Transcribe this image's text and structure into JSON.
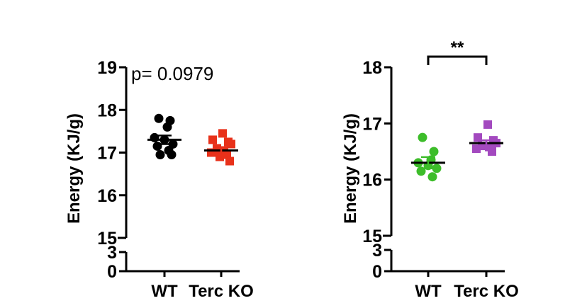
{
  "chart_data": [
    {
      "type": "scatter",
      "ylabel": "Energy (KJ/g)",
      "categories": [
        "WT",
        "Terc KO"
      ],
      "annotation": "p= 0.0979",
      "y_ticks_upper": [
        "15",
        "16",
        "17",
        "18",
        "19"
      ],
      "y_ticks_lower": [
        "0",
        "3"
      ],
      "ylim_upper": [
        15,
        19
      ],
      "ylim_lower": [
        0,
        3
      ],
      "series": [
        {
          "name": "WT",
          "marker": "circle",
          "color": "#000000",
          "values": [
            17.8,
            17.75,
            17.6,
            17.35,
            17.3,
            17.2,
            17.15,
            17.05,
            16.95,
            16.95
          ],
          "mean": 17.3,
          "sem": 0.1
        },
        {
          "name": "Terc KO",
          "marker": "square",
          "color": "#e8311a",
          "values": [
            17.45,
            17.3,
            17.25,
            17.2,
            17.1,
            17.05,
            17.0,
            16.95,
            16.9,
            16.8
          ],
          "mean": 17.05,
          "sem": 0.05
        }
      ]
    },
    {
      "type": "scatter",
      "ylabel": "Energy (KJ/g)",
      "categories": [
        "WT",
        "Terc KO"
      ],
      "annotation": "**",
      "y_ticks_upper": [
        "15",
        "16",
        "17",
        "18"
      ],
      "y_ticks_lower": [
        "0",
        "3"
      ],
      "ylim_upper": [
        15,
        18
      ],
      "ylim_lower": [
        0,
        3
      ],
      "series": [
        {
          "name": "WT",
          "marker": "circle",
          "color": "#3dbd2a",
          "values": [
            16.75,
            16.5,
            16.35,
            16.3,
            16.25,
            16.2,
            16.15,
            16.05
          ],
          "mean": 16.3,
          "sem": 0.1
        },
        {
          "name": "Terc KO",
          "marker": "square",
          "color": "#a349bf",
          "values": [
            16.98,
            16.75,
            16.7,
            16.65,
            16.6,
            16.58,
            16.55,
            16.5
          ],
          "mean": 16.65,
          "sem": 0.05
        }
      ]
    }
  ]
}
